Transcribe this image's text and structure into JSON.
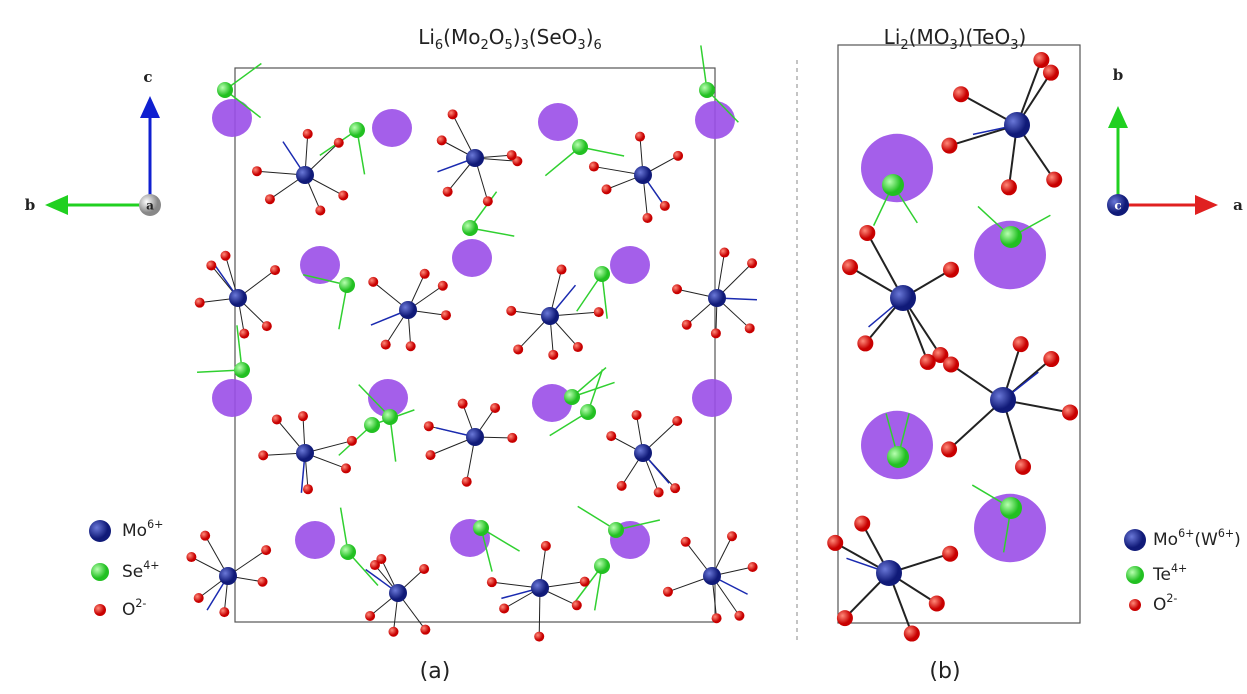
{
  "panels": [
    {
      "title": [
        "Li",
        "6",
        "(Mo",
        "2",
        "O",
        "5",
        ")",
        "3",
        "(SeO",
        "3",
        ")",
        "6"
      ],
      "axes": {
        "vertical": "c",
        "horizontal": "b",
        "center": "a"
      },
      "legend": [
        [
          "Mo",
          "6+"
        ],
        [
          "Se",
          "4+"
        ],
        [
          "O",
          "2-"
        ]
      ],
      "label": "(a)"
    },
    {
      "title": [
        "Li",
        "2",
        "(MO",
        "3",
        ")(TeO",
        "3",
        ")"
      ],
      "axes": {
        "vertical": "b",
        "horizontal": "a",
        "center": "c"
      },
      "legend": [
        [
          "Mo",
          "6+",
          "(W",
          "6+",
          ")"
        ],
        [
          "Te",
          "4+"
        ],
        [
          "O",
          "2-"
        ]
      ],
      "label": "(b)"
    }
  ]
}
